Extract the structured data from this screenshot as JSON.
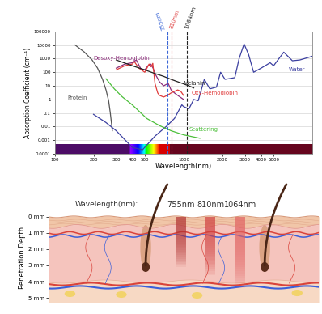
{
  "chart_data": {
    "type": "line",
    "xlabel": "Wavelength(nm)",
    "ylabel": "Absorption Coefficient (cm⁻¹)",
    "log": true,
    "grid": true,
    "xlim": [
      100,
      10000
    ],
    "xticks": [
      100,
      200,
      300,
      400,
      500,
      1000,
      2000,
      3000,
      4000,
      5000
    ],
    "ylim": [
      0.0001,
      100000
    ],
    "yticks": [
      0.0001,
      0.001,
      0.01,
      0.1,
      1,
      10,
      100,
      1000,
      10000,
      100000
    ],
    "series": [
      {
        "name": "Protein",
        "color": "#555555",
        "x": [
          144,
          170,
          195,
          215,
          235,
          250,
          262,
          270,
          280
        ],
        "values": [
          10000,
          3000,
          800,
          200,
          30,
          5,
          0.8,
          0.1,
          0.005
        ]
      },
      {
        "name": "Desoxy-Hemoglobin",
        "color": "#8b2c7a",
        "x": [
          300,
          350,
          400,
          430,
          470,
          500,
          530,
          555,
          580,
          600,
          650,
          700,
          760,
          800,
          850,
          900,
          1000
        ],
        "values": [
          200,
          400,
          500,
          800,
          150,
          150,
          300,
          400,
          200,
          80,
          20,
          10,
          15,
          5,
          3,
          2,
          1
        ]
      },
      {
        "name": "Oxy-Hemoglobin",
        "color": "#e03a3a",
        "x": [
          300,
          350,
          400,
          415,
          450,
          500,
          540,
          560,
          577,
          600,
          630,
          650,
          700,
          750,
          800,
          900,
          950,
          1000
        ],
        "values": [
          150,
          300,
          400,
          600,
          200,
          100,
          400,
          250,
          450,
          15,
          3,
          2,
          1.5,
          2,
          3,
          5,
          4,
          2
        ]
      },
      {
        "name": "Melanin",
        "color": "#222222",
        "x": [
          300,
          400,
          500,
          600,
          700,
          800,
          900,
          1000,
          1100,
          1200
        ],
        "values": [
          800,
          300,
          150,
          80,
          50,
          30,
          20,
          14,
          10,
          7
        ]
      },
      {
        "name": "Water",
        "color": "#3b3fa0",
        "x": [
          200,
          250,
          300,
          400,
          480,
          600,
          740,
          850,
          970,
          1000,
          1100,
          1200,
          1300,
          1450,
          1600,
          1800,
          1940,
          2100,
          2500,
          2700,
          2950,
          3200,
          3500,
          4000,
          4700,
          5000,
          6000,
          7000,
          8000,
          10000
        ],
        "values": [
          0.08,
          0.02,
          0.005,
          0.0003,
          0.0002,
          0.002,
          0.011,
          0.04,
          0.4,
          0.3,
          0.2,
          1,
          0.8,
          30,
          6,
          8,
          100,
          30,
          40,
          1000,
          12000,
          2000,
          100,
          200,
          500,
          300,
          3000,
          700,
          800,
          1500
        ]
      },
      {
        "name": "Scattering",
        "color": "#4cbf3a",
        "x": [
          250,
          290,
          333,
          400,
          518,
          650,
          800,
          1000,
          1340
        ],
        "values": [
          33,
          6,
          1.6,
          0.4,
          0.04,
          0.012,
          0.005,
          0.0025,
          0.0014
        ]
      }
    ],
    "reference_lines": [
      {
        "x": 755,
        "label": "755nm",
        "color": "#3a66d6"
      },
      {
        "x": 810,
        "label": "810nm",
        "color": "#e04848"
      },
      {
        "x": 1064,
        "label": "1064nm",
        "color": "#222222"
      }
    ]
  },
  "diagram": {
    "wavelength_label": "Wavelength(nm):",
    "depth_axis": {
      "label": "Penetration Depth",
      "ylim": [
        -0.3,
        5.3
      ],
      "yticks": [
        {
          "value": 0,
          "label": "0 mm"
        },
        {
          "value": 1,
          "label": "1 mm"
        },
        {
          "value": 2,
          "label": "2 mm"
        },
        {
          "value": 3,
          "label": "3 mm"
        },
        {
          "value": 4,
          "label": "4 mm"
        },
        {
          "value": 5,
          "label": "5 mm"
        }
      ]
    },
    "beams": [
      {
        "label": "755nm",
        "depth": 3.1,
        "color": "#b03030"
      },
      {
        "label": "810nm",
        "depth": 3.6,
        "color": "#d04040"
      },
      {
        "label": "1064nm",
        "depth": 4.4,
        "color": "#e06060"
      }
    ]
  }
}
